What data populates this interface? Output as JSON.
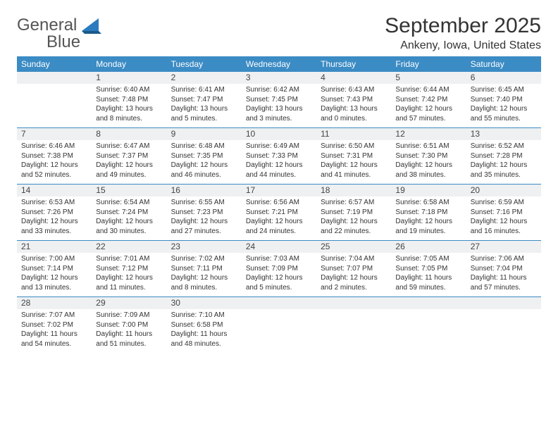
{
  "logo": {
    "text1": "General",
    "text2": "Blue"
  },
  "title": "September 2025",
  "location": "Ankeny, Iowa, United States",
  "colors": {
    "header_bg": "#3b8bc4",
    "header_text": "#ffffff",
    "daynum_bg": "#eef0f2",
    "border": "#3b8bc4",
    "body_text": "#333333",
    "logo_gray": "#555555",
    "logo_blue": "#2b7bbf"
  },
  "dayHeaders": [
    "Sunday",
    "Monday",
    "Tuesday",
    "Wednesday",
    "Thursday",
    "Friday",
    "Saturday"
  ],
  "weeks": [
    [
      null,
      {
        "n": "1",
        "sr": "6:40 AM",
        "ss": "7:48 PM",
        "dl": "13 hours and 8 minutes."
      },
      {
        "n": "2",
        "sr": "6:41 AM",
        "ss": "7:47 PM",
        "dl": "13 hours and 5 minutes."
      },
      {
        "n": "3",
        "sr": "6:42 AM",
        "ss": "7:45 PM",
        "dl": "13 hours and 3 minutes."
      },
      {
        "n": "4",
        "sr": "6:43 AM",
        "ss": "7:43 PM",
        "dl": "13 hours and 0 minutes."
      },
      {
        "n": "5",
        "sr": "6:44 AM",
        "ss": "7:42 PM",
        "dl": "12 hours and 57 minutes."
      },
      {
        "n": "6",
        "sr": "6:45 AM",
        "ss": "7:40 PM",
        "dl": "12 hours and 55 minutes."
      }
    ],
    [
      {
        "n": "7",
        "sr": "6:46 AM",
        "ss": "7:38 PM",
        "dl": "12 hours and 52 minutes."
      },
      {
        "n": "8",
        "sr": "6:47 AM",
        "ss": "7:37 PM",
        "dl": "12 hours and 49 minutes."
      },
      {
        "n": "9",
        "sr": "6:48 AM",
        "ss": "7:35 PM",
        "dl": "12 hours and 46 minutes."
      },
      {
        "n": "10",
        "sr": "6:49 AM",
        "ss": "7:33 PM",
        "dl": "12 hours and 44 minutes."
      },
      {
        "n": "11",
        "sr": "6:50 AM",
        "ss": "7:31 PM",
        "dl": "12 hours and 41 minutes."
      },
      {
        "n": "12",
        "sr": "6:51 AM",
        "ss": "7:30 PM",
        "dl": "12 hours and 38 minutes."
      },
      {
        "n": "13",
        "sr": "6:52 AM",
        "ss": "7:28 PM",
        "dl": "12 hours and 35 minutes."
      }
    ],
    [
      {
        "n": "14",
        "sr": "6:53 AM",
        "ss": "7:26 PM",
        "dl": "12 hours and 33 minutes."
      },
      {
        "n": "15",
        "sr": "6:54 AM",
        "ss": "7:24 PM",
        "dl": "12 hours and 30 minutes."
      },
      {
        "n": "16",
        "sr": "6:55 AM",
        "ss": "7:23 PM",
        "dl": "12 hours and 27 minutes."
      },
      {
        "n": "17",
        "sr": "6:56 AM",
        "ss": "7:21 PM",
        "dl": "12 hours and 24 minutes."
      },
      {
        "n": "18",
        "sr": "6:57 AM",
        "ss": "7:19 PM",
        "dl": "12 hours and 22 minutes."
      },
      {
        "n": "19",
        "sr": "6:58 AM",
        "ss": "7:18 PM",
        "dl": "12 hours and 19 minutes."
      },
      {
        "n": "20",
        "sr": "6:59 AM",
        "ss": "7:16 PM",
        "dl": "12 hours and 16 minutes."
      }
    ],
    [
      {
        "n": "21",
        "sr": "7:00 AM",
        "ss": "7:14 PM",
        "dl": "12 hours and 13 minutes."
      },
      {
        "n": "22",
        "sr": "7:01 AM",
        "ss": "7:12 PM",
        "dl": "12 hours and 11 minutes."
      },
      {
        "n": "23",
        "sr": "7:02 AM",
        "ss": "7:11 PM",
        "dl": "12 hours and 8 minutes."
      },
      {
        "n": "24",
        "sr": "7:03 AM",
        "ss": "7:09 PM",
        "dl": "12 hours and 5 minutes."
      },
      {
        "n": "25",
        "sr": "7:04 AM",
        "ss": "7:07 PM",
        "dl": "12 hours and 2 minutes."
      },
      {
        "n": "26",
        "sr": "7:05 AM",
        "ss": "7:05 PM",
        "dl": "11 hours and 59 minutes."
      },
      {
        "n": "27",
        "sr": "7:06 AM",
        "ss": "7:04 PM",
        "dl": "11 hours and 57 minutes."
      }
    ],
    [
      {
        "n": "28",
        "sr": "7:07 AM",
        "ss": "7:02 PM",
        "dl": "11 hours and 54 minutes."
      },
      {
        "n": "29",
        "sr": "7:09 AM",
        "ss": "7:00 PM",
        "dl": "11 hours and 51 minutes."
      },
      {
        "n": "30",
        "sr": "7:10 AM",
        "ss": "6:58 PM",
        "dl": "11 hours and 48 minutes."
      },
      null,
      null,
      null,
      null
    ]
  ],
  "labels": {
    "sunrise": "Sunrise:",
    "sunset": "Sunset:",
    "daylight": "Daylight:"
  }
}
